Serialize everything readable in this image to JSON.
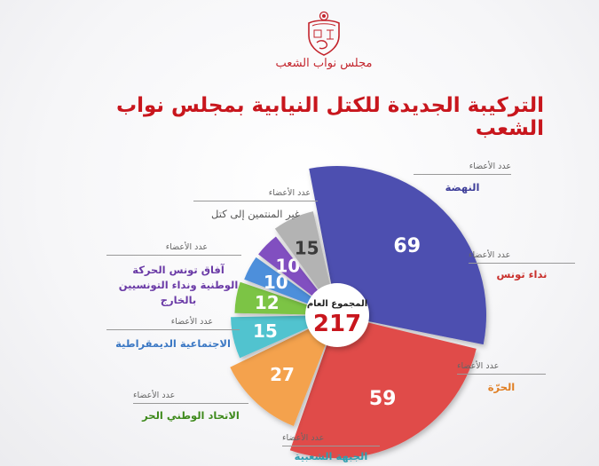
{
  "header": {
    "caption": "مجلس نواب الشعب",
    "title": "التركيبة الجديدة للكتل النيابية بمجلس نواب الشعب"
  },
  "chart_data": {
    "type": "pie",
    "title": "التركيبة الجديدة للكتل النيابية بمجلس نواب الشعب",
    "legend_caption": "عدد الأعضاء",
    "total_label": "المجموع العام",
    "total": 217,
    "categories": [
      "النهضة",
      "نداء تونس",
      "الحرّة",
      "الجبهة الشعبية",
      "الاتحاد الوطني الحر",
      "الاجتماعية الديمقراطية",
      "آفاق تونس الحركة الوطنية ونداء التونسيين بالخارج",
      "غير المنتمين إلى كتل"
    ],
    "values": [
      69,
      59,
      27,
      15,
      12,
      10,
      10,
      15
    ],
    "colors": [
      "#4d4fb0",
      "#e04c4a",
      "#f4a24e",
      "#51c3cf",
      "#7cc444",
      "#4d8fdb",
      "#8150c0",
      "#b3b3b3"
    ],
    "label_colors": [
      "#3f3f9a",
      "#c9302c",
      "#e07f24",
      "#2e9fb0",
      "#3e8a1c",
      "#3b78c4",
      "#6a3aa6",
      "#555555"
    ]
  }
}
